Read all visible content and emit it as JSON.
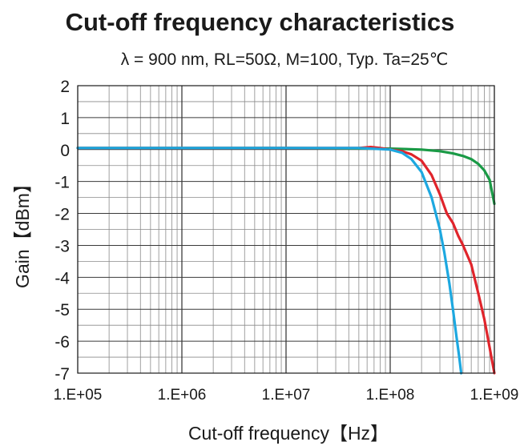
{
  "chart_data": {
    "type": "line",
    "title": "Cut-off frequency characteristics",
    "subtitle": "λ = 900 nm, RL=50Ω, M=100, Typ. Ta=25℃",
    "xlabel": "Cut-off frequency【Hz】",
    "ylabel": "Gain【dBm】",
    "xscale": "log",
    "xlim": [
      100000,
      1000000000
    ],
    "ylim": [
      -7,
      2
    ],
    "xticks": [
      "1.E+05",
      "1.E+06",
      "1.E+07",
      "1.E+08",
      "1.E+09"
    ],
    "yticks": [
      "2",
      "1",
      "0",
      "-1",
      "-2",
      "-3",
      "-4",
      "-5",
      "-6",
      "-7"
    ],
    "grid": true,
    "legend": "none",
    "series": [
      {
        "color": "#1a9a46",
        "x": [
          100000,
          1000000,
          10000000,
          100000000,
          200000000,
          300000000,
          400000000,
          500000000,
          600000000,
          700000000,
          800000000,
          900000000,
          1000000000
        ],
        "y": [
          0.05,
          0.05,
          0.05,
          0.03,
          0.0,
          -0.05,
          -0.12,
          -0.2,
          -0.3,
          -0.45,
          -0.65,
          -0.95,
          -1.7
        ]
      },
      {
        "color": "#e0242b",
        "x": [
          100000,
          1000000,
          10000000,
          50000000,
          65000000,
          80000000,
          100000000,
          130000000,
          160000000,
          200000000,
          250000000,
          300000000,
          350000000,
          400000000,
          450000000,
          500000000,
          600000000,
          700000000,
          800000000,
          900000000,
          1000000000
        ],
        "y": [
          0.05,
          0.05,
          0.05,
          0.05,
          0.08,
          0.05,
          0.0,
          -0.05,
          -0.15,
          -0.35,
          -0.8,
          -1.4,
          -2.0,
          -2.3,
          -2.7,
          -3.0,
          -3.6,
          -4.5,
          -5.3,
          -6.2,
          -7.0
        ]
      },
      {
        "color": "#1da8e0",
        "x": [
          100000,
          1000000,
          10000000,
          50000000,
          100000000,
          130000000,
          160000000,
          200000000,
          250000000,
          300000000,
          330000000,
          370000000,
          400000000,
          430000000,
          460000000,
          480000000
        ],
        "y": [
          0.05,
          0.05,
          0.05,
          0.05,
          0.0,
          -0.1,
          -0.3,
          -0.7,
          -1.5,
          -2.5,
          -3.2,
          -4.2,
          -5.0,
          -5.8,
          -6.5,
          -7.0
        ]
      }
    ]
  }
}
